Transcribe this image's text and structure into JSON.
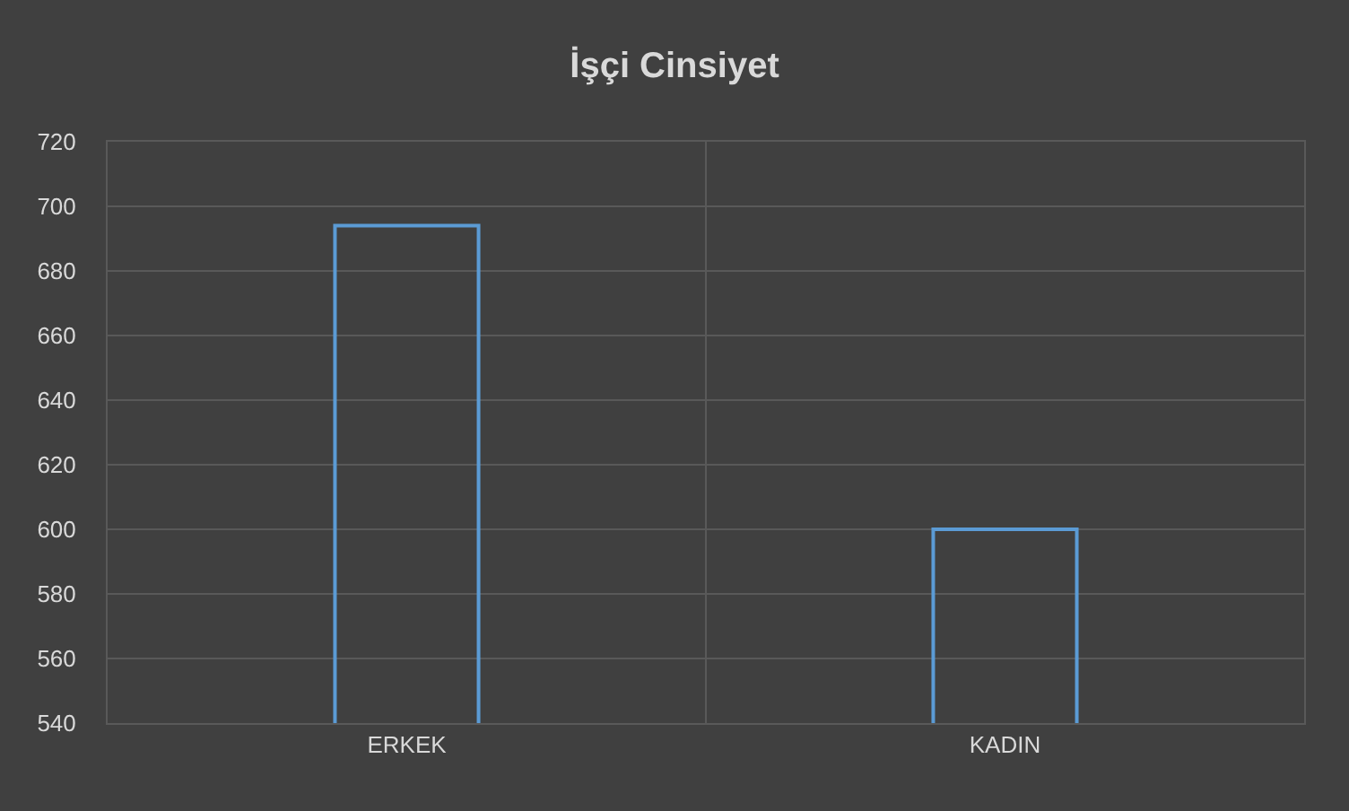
{
  "chart_data": {
    "type": "bar",
    "title": "İşçi Cinsiyet",
    "categories": [
      "ERKEK",
      "KADIN"
    ],
    "values": [
      694,
      600
    ],
    "color": "#5b9bd5",
    "ylim": [
      540,
      720
    ],
    "yticks": [
      540,
      560,
      580,
      600,
      620,
      640,
      660,
      680,
      700,
      720
    ],
    "grid": true
  }
}
